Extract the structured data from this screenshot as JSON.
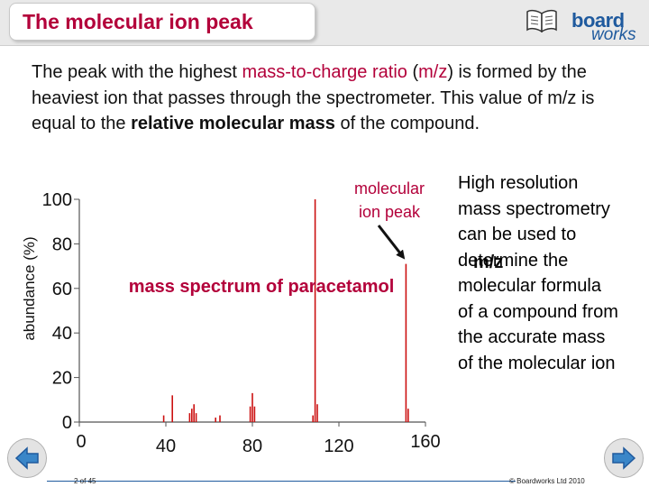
{
  "slide": {
    "title": "The molecular ion peak",
    "logo_top": "board",
    "logo_bottom": "works",
    "intro": {
      "p1": "The peak with the highest ",
      "p2": "mass-to-charge ratio",
      "p3": " (",
      "p4": "m/z",
      "p5": ") is formed by the heaviest ion that passes through the spectrometer. This value of m/z is equal to the ",
      "p6": "relative molecular mass",
      "p7": " of the compound."
    },
    "side_note": [
      "High resolution",
      "mass spectrometry",
      "can be used to",
      "determine the",
      "molecular formula",
      "of a compound from",
      "the accurate mass",
      "of the molecular ion"
    ],
    "annotation": [
      "molecular",
      "ion peak"
    ],
    "page_number": "2 of 45",
    "copyright": "© Boardworks Ltd 2010"
  },
  "chart_data": {
    "type": "bar",
    "title": "mass spectrum of paracetamol",
    "xlabel": "m/z",
    "ylabel": "abundance (%)",
    "xlim": [
      0,
      160
    ],
    "ylim": [
      0,
      100
    ],
    "x_ticks": [
      0,
      40,
      80,
      120,
      160
    ],
    "y_ticks": [
      0,
      20,
      40,
      60,
      80,
      100
    ],
    "peaks": [
      {
        "x": 39,
        "y": 3
      },
      {
        "x": 43,
        "y": 12
      },
      {
        "x": 51,
        "y": 4
      },
      {
        "x": 52,
        "y": 6
      },
      {
        "x": 53,
        "y": 8
      },
      {
        "x": 54,
        "y": 4
      },
      {
        "x": 63,
        "y": 2
      },
      {
        "x": 65,
        "y": 3
      },
      {
        "x": 79,
        "y": 7
      },
      {
        "x": 80,
        "y": 13
      },
      {
        "x": 81,
        "y": 7
      },
      {
        "x": 108,
        "y": 3
      },
      {
        "x": 109,
        "y": 100
      },
      {
        "x": 110,
        "y": 8
      },
      {
        "x": 151,
        "y": 71
      },
      {
        "x": 152,
        "y": 6
      }
    ],
    "molecular_ion": 151,
    "colors": {
      "peaks": "#cc1111",
      "axis": "#555555",
      "accent": "#b3003a",
      "arrow": "#111111"
    }
  }
}
